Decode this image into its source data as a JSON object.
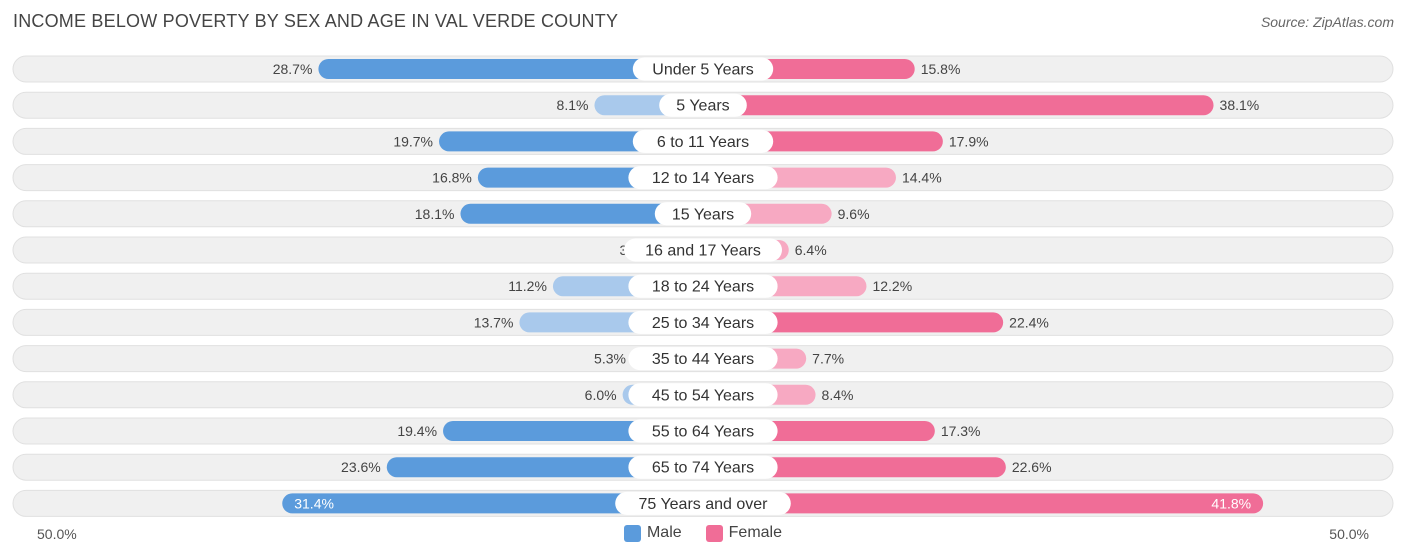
{
  "title": "INCOME BELOW POVERTY BY SEX AND AGE IN VAL VERDE COUNTY",
  "source": "Source: ZipAtlas.com",
  "legend": {
    "male": "Male",
    "female": "Female"
  },
  "axis": {
    "left_label": "50.0%",
    "right_label": "50.0%"
  },
  "colors": {
    "male_dark": "#5b9bdc",
    "male_light": "#a9c9ec",
    "female_dark": "#f06d97",
    "female_light": "#f7a9c2",
    "row_bg": "#f0f0f0",
    "row_border": "#e0e0e0"
  },
  "chart_data": {
    "type": "bar",
    "orientation": "horizontal-diverging",
    "categories": [
      "Under 5 Years",
      "5 Years",
      "6 to 11 Years",
      "12 to 14 Years",
      "15 Years",
      "16 and 17 Years",
      "18 to 24 Years",
      "25 to 34 Years",
      "35 to 44 Years",
      "45 to 54 Years",
      "55 to 64 Years",
      "65 to 74 Years",
      "75 Years and over"
    ],
    "series": [
      {
        "name": "Male",
        "values": [
          28.7,
          8.1,
          19.7,
          16.8,
          18.1,
          3.4,
          11.2,
          13.7,
          5.3,
          6.0,
          19.4,
          23.6,
          31.4
        ],
        "labels": [
          "28.7%",
          "8.1%",
          "19.7%",
          "16.8%",
          "18.1%",
          "3.4%",
          "11.2%",
          "13.7%",
          "5.3%",
          "6.0%",
          "19.4%",
          "23.6%",
          "31.4%"
        ]
      },
      {
        "name": "Female",
        "values": [
          15.8,
          38.1,
          17.9,
          14.4,
          9.6,
          6.4,
          12.2,
          22.4,
          7.7,
          8.4,
          17.3,
          22.6,
          41.8
        ],
        "labels": [
          "15.8%",
          "38.1%",
          "17.9%",
          "14.4%",
          "9.6%",
          "6.4%",
          "12.2%",
          "22.4%",
          "7.7%",
          "8.4%",
          "17.3%",
          "22.6%",
          "41.8%"
        ]
      }
    ],
    "xlim": [
      -50,
      50
    ],
    "grid": false,
    "legend_position": "bottom-center"
  }
}
